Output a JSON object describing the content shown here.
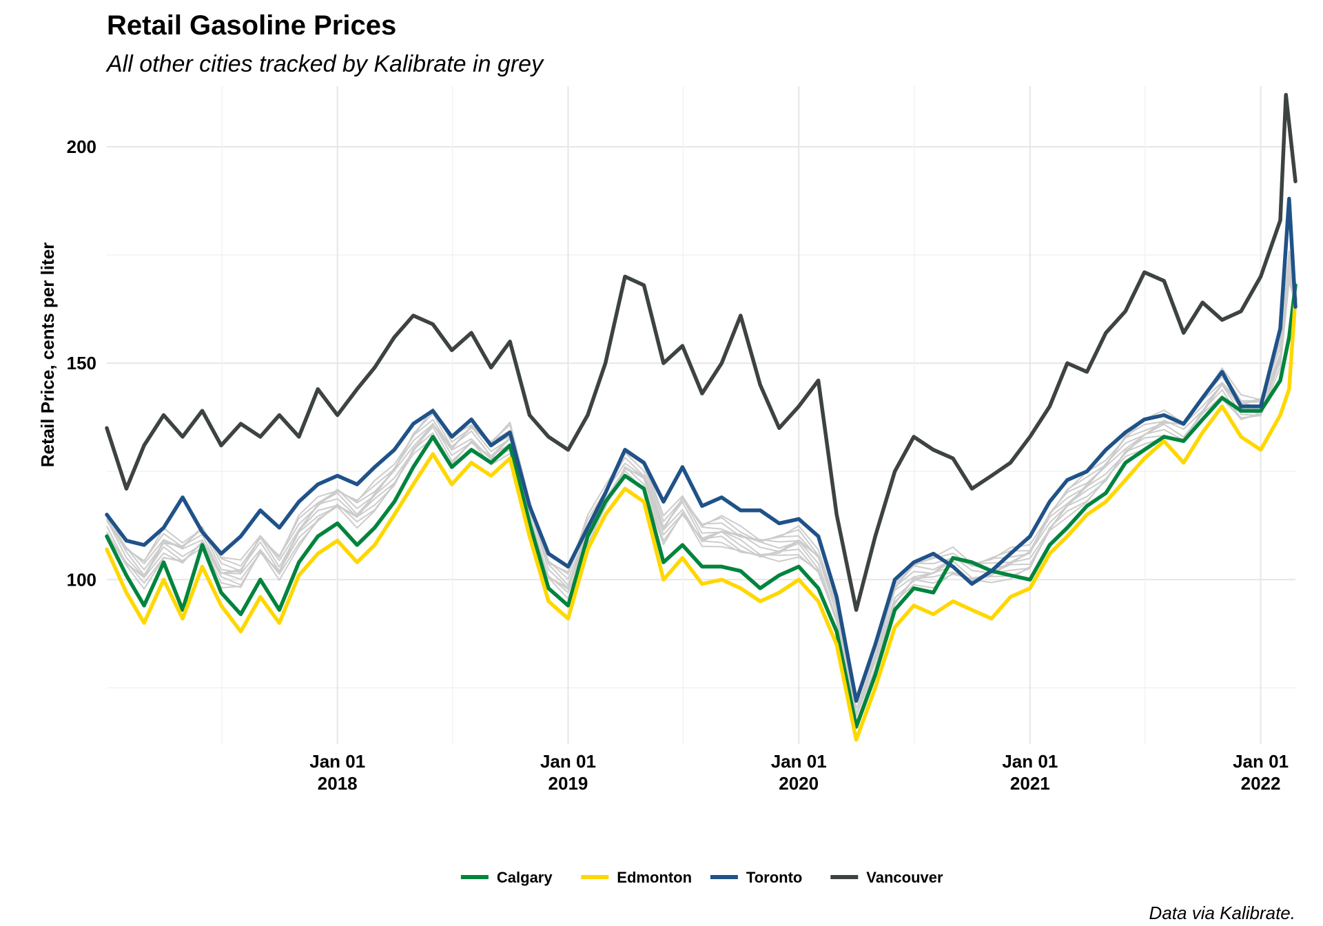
{
  "chart_data": {
    "type": "line",
    "title": "Retail Gasoline Prices",
    "subtitle": "All other cities tracked by Kalibrate in grey",
    "xlabel": "",
    "ylabel": "Retail Price, cents per liter",
    "caption": "Data via Kalibrate.",
    "x_range": [
      "2017-01-01",
      "2022-02-25"
    ],
    "ylim": [
      62,
      214
    ],
    "y_ticks": [
      100,
      150,
      200
    ],
    "x_ticks": [
      {
        "date": "2018-01-01",
        "line1": "Jan 01",
        "line2": "2018"
      },
      {
        "date": "2019-01-01",
        "line1": "Jan 01",
        "line2": "2019"
      },
      {
        "date": "2020-01-01",
        "line1": "Jan 01",
        "line2": "2020"
      },
      {
        "date": "2021-01-01",
        "line1": "Jan 01",
        "line2": "2021"
      },
      {
        "date": "2022-01-01",
        "line1": "Jan 01",
        "line2": "2022"
      }
    ],
    "grid": true,
    "legend_position": "bottom",
    "background_series_color": "#cccccc",
    "series": [
      {
        "name": "Calgary",
        "color": "#00843d",
        "points": [
          [
            "2017-01-01",
            110
          ],
          [
            "2017-02-01",
            101
          ],
          [
            "2017-03-01",
            94
          ],
          [
            "2017-04-01",
            104
          ],
          [
            "2017-05-01",
            93
          ],
          [
            "2017-06-01",
            108
          ],
          [
            "2017-07-01",
            97
          ],
          [
            "2017-08-01",
            92
          ],
          [
            "2017-09-01",
            100
          ],
          [
            "2017-10-01",
            93
          ],
          [
            "2017-11-01",
            104
          ],
          [
            "2017-12-01",
            110
          ],
          [
            "2018-01-01",
            113
          ],
          [
            "2018-02-01",
            108
          ],
          [
            "2018-03-01",
            112
          ],
          [
            "2018-04-01",
            118
          ],
          [
            "2018-05-01",
            126
          ],
          [
            "2018-06-01",
            133
          ],
          [
            "2018-07-01",
            126
          ],
          [
            "2018-08-01",
            130
          ],
          [
            "2018-09-01",
            127
          ],
          [
            "2018-10-01",
            131
          ],
          [
            "2018-11-01",
            113
          ],
          [
            "2018-12-01",
            98
          ],
          [
            "2019-01-01",
            94
          ],
          [
            "2019-02-01",
            110
          ],
          [
            "2019-03-01",
            118
          ],
          [
            "2019-04-01",
            124
          ],
          [
            "2019-05-01",
            121
          ],
          [
            "2019-06-01",
            104
          ],
          [
            "2019-07-01",
            108
          ],
          [
            "2019-08-01",
            103
          ],
          [
            "2019-09-01",
            103
          ],
          [
            "2019-10-01",
            102
          ],
          [
            "2019-11-01",
            98
          ],
          [
            "2019-12-01",
            101
          ],
          [
            "2020-01-01",
            103
          ],
          [
            "2020-02-01",
            98
          ],
          [
            "2020-03-01",
            88
          ],
          [
            "2020-04-01",
            66
          ],
          [
            "2020-05-01",
            78
          ],
          [
            "2020-06-01",
            93
          ],
          [
            "2020-07-01",
            98
          ],
          [
            "2020-08-01",
            97
          ],
          [
            "2020-09-01",
            105
          ],
          [
            "2020-10-01",
            104
          ],
          [
            "2020-11-01",
            102
          ],
          [
            "2020-12-01",
            101
          ],
          [
            "2021-01-01",
            100
          ],
          [
            "2021-02-01",
            108
          ],
          [
            "2021-03-01",
            112
          ],
          [
            "2021-04-01",
            117
          ],
          [
            "2021-05-01",
            120
          ],
          [
            "2021-06-01",
            127
          ],
          [
            "2021-07-01",
            130
          ],
          [
            "2021-08-01",
            133
          ],
          [
            "2021-09-01",
            132
          ],
          [
            "2021-10-01",
            137
          ],
          [
            "2021-11-01",
            142
          ],
          [
            "2021-12-01",
            139
          ],
          [
            "2022-01-01",
            139
          ],
          [
            "2022-02-01",
            146
          ],
          [
            "2022-02-15",
            156
          ],
          [
            "2022-02-25",
            168
          ]
        ]
      },
      {
        "name": "Edmonton",
        "color": "#ffd700",
        "points": [
          [
            "2017-01-01",
            107
          ],
          [
            "2017-02-01",
            97
          ],
          [
            "2017-03-01",
            90
          ],
          [
            "2017-04-01",
            100
          ],
          [
            "2017-05-01",
            91
          ],
          [
            "2017-06-01",
            103
          ],
          [
            "2017-07-01",
            94
          ],
          [
            "2017-08-01",
            88
          ],
          [
            "2017-09-01",
            96
          ],
          [
            "2017-10-01",
            90
          ],
          [
            "2017-11-01",
            101
          ],
          [
            "2017-12-01",
            106
          ],
          [
            "2018-01-01",
            109
          ],
          [
            "2018-02-01",
            104
          ],
          [
            "2018-03-01",
            108
          ],
          [
            "2018-04-01",
            115
          ],
          [
            "2018-05-01",
            122
          ],
          [
            "2018-06-01",
            129
          ],
          [
            "2018-07-01",
            122
          ],
          [
            "2018-08-01",
            127
          ],
          [
            "2018-09-01",
            124
          ],
          [
            "2018-10-01",
            128
          ],
          [
            "2018-11-01",
            110
          ],
          [
            "2018-12-01",
            95
          ],
          [
            "2019-01-01",
            91
          ],
          [
            "2019-02-01",
            107
          ],
          [
            "2019-03-01",
            115
          ],
          [
            "2019-04-01",
            121
          ],
          [
            "2019-05-01",
            118
          ],
          [
            "2019-06-01",
            100
          ],
          [
            "2019-07-01",
            105
          ],
          [
            "2019-08-01",
            99
          ],
          [
            "2019-09-01",
            100
          ],
          [
            "2019-10-01",
            98
          ],
          [
            "2019-11-01",
            95
          ],
          [
            "2019-12-01",
            97
          ],
          [
            "2020-01-01",
            100
          ],
          [
            "2020-02-01",
            95
          ],
          [
            "2020-03-01",
            85
          ],
          [
            "2020-04-01",
            63
          ],
          [
            "2020-05-01",
            75
          ],
          [
            "2020-06-01",
            89
          ],
          [
            "2020-07-01",
            94
          ],
          [
            "2020-08-01",
            92
          ],
          [
            "2020-09-01",
            95
          ],
          [
            "2020-10-01",
            93
          ],
          [
            "2020-11-01",
            91
          ],
          [
            "2020-12-01",
            96
          ],
          [
            "2021-01-01",
            98
          ],
          [
            "2021-02-01",
            106
          ],
          [
            "2021-03-01",
            110
          ],
          [
            "2021-04-01",
            115
          ],
          [
            "2021-05-01",
            118
          ],
          [
            "2021-06-01",
            123
          ],
          [
            "2021-07-01",
            128
          ],
          [
            "2021-08-01",
            132
          ],
          [
            "2021-09-01",
            127
          ],
          [
            "2021-10-01",
            134
          ],
          [
            "2021-11-01",
            140
          ],
          [
            "2021-12-01",
            133
          ],
          [
            "2022-01-01",
            130
          ],
          [
            "2022-02-01",
            138
          ],
          [
            "2022-02-15",
            144
          ],
          [
            "2022-02-25",
            165
          ]
        ]
      },
      {
        "name": "Toronto",
        "color": "#1f5288",
        "points": [
          [
            "2017-01-01",
            115
          ],
          [
            "2017-02-01",
            109
          ],
          [
            "2017-03-01",
            108
          ],
          [
            "2017-04-01",
            112
          ],
          [
            "2017-05-01",
            119
          ],
          [
            "2017-06-01",
            111
          ],
          [
            "2017-07-01",
            106
          ],
          [
            "2017-08-01",
            110
          ],
          [
            "2017-09-01",
            116
          ],
          [
            "2017-10-01",
            112
          ],
          [
            "2017-11-01",
            118
          ],
          [
            "2017-12-01",
            122
          ],
          [
            "2018-01-01",
            124
          ],
          [
            "2018-02-01",
            122
          ],
          [
            "2018-03-01",
            126
          ],
          [
            "2018-04-01",
            130
          ],
          [
            "2018-05-01",
            136
          ],
          [
            "2018-06-01",
            139
          ],
          [
            "2018-07-01",
            133
          ],
          [
            "2018-08-01",
            137
          ],
          [
            "2018-09-01",
            131
          ],
          [
            "2018-10-01",
            134
          ],
          [
            "2018-11-01",
            117
          ],
          [
            "2018-12-01",
            106
          ],
          [
            "2019-01-01",
            103
          ],
          [
            "2019-02-01",
            112
          ],
          [
            "2019-03-01",
            120
          ],
          [
            "2019-04-01",
            130
          ],
          [
            "2019-05-01",
            127
          ],
          [
            "2019-06-01",
            118
          ],
          [
            "2019-07-01",
            126
          ],
          [
            "2019-08-01",
            117
          ],
          [
            "2019-09-01",
            119
          ],
          [
            "2019-10-01",
            116
          ],
          [
            "2019-11-01",
            116
          ],
          [
            "2019-12-01",
            113
          ],
          [
            "2020-01-01",
            114
          ],
          [
            "2020-02-01",
            110
          ],
          [
            "2020-03-01",
            96
          ],
          [
            "2020-04-01",
            72
          ],
          [
            "2020-05-01",
            85
          ],
          [
            "2020-06-01",
            100
          ],
          [
            "2020-07-01",
            104
          ],
          [
            "2020-08-01",
            106
          ],
          [
            "2020-09-01",
            103
          ],
          [
            "2020-10-01",
            99
          ],
          [
            "2020-11-01",
            102
          ],
          [
            "2020-12-01",
            106
          ],
          [
            "2021-01-01",
            110
          ],
          [
            "2021-02-01",
            118
          ],
          [
            "2021-03-01",
            123
          ],
          [
            "2021-04-01",
            125
          ],
          [
            "2021-05-01",
            130
          ],
          [
            "2021-06-01",
            134
          ],
          [
            "2021-07-01",
            137
          ],
          [
            "2021-08-01",
            138
          ],
          [
            "2021-09-01",
            136
          ],
          [
            "2021-10-01",
            142
          ],
          [
            "2021-11-01",
            148
          ],
          [
            "2021-12-01",
            140
          ],
          [
            "2022-01-01",
            140
          ],
          [
            "2022-02-01",
            158
          ],
          [
            "2022-02-15",
            188
          ],
          [
            "2022-02-25",
            163
          ]
        ]
      },
      {
        "name": "Vancouver",
        "color": "#3d4242",
        "points": [
          [
            "2017-01-01",
            135
          ],
          [
            "2017-02-01",
            121
          ],
          [
            "2017-03-01",
            131
          ],
          [
            "2017-04-01",
            138
          ],
          [
            "2017-05-01",
            133
          ],
          [
            "2017-06-01",
            139
          ],
          [
            "2017-07-01",
            131
          ],
          [
            "2017-08-01",
            136
          ],
          [
            "2017-09-01",
            133
          ],
          [
            "2017-10-01",
            138
          ],
          [
            "2017-11-01",
            133
          ],
          [
            "2017-12-01",
            144
          ],
          [
            "2018-01-01",
            138
          ],
          [
            "2018-02-01",
            144
          ],
          [
            "2018-03-01",
            149
          ],
          [
            "2018-04-01",
            156
          ],
          [
            "2018-05-01",
            161
          ],
          [
            "2018-06-01",
            159
          ],
          [
            "2018-07-01",
            153
          ],
          [
            "2018-08-01",
            157
          ],
          [
            "2018-09-01",
            149
          ],
          [
            "2018-10-01",
            155
          ],
          [
            "2018-11-01",
            138
          ],
          [
            "2018-12-01",
            133
          ],
          [
            "2019-01-01",
            130
          ],
          [
            "2019-02-01",
            138
          ],
          [
            "2019-03-01",
            150
          ],
          [
            "2019-04-01",
            170
          ],
          [
            "2019-05-01",
            168
          ],
          [
            "2019-06-01",
            150
          ],
          [
            "2019-07-01",
            154
          ],
          [
            "2019-08-01",
            143
          ],
          [
            "2019-09-01",
            150
          ],
          [
            "2019-10-01",
            161
          ],
          [
            "2019-11-01",
            145
          ],
          [
            "2019-12-01",
            135
          ],
          [
            "2020-01-01",
            140
          ],
          [
            "2020-02-01",
            146
          ],
          [
            "2020-03-01",
            115
          ],
          [
            "2020-04-01",
            93
          ],
          [
            "2020-05-01",
            110
          ],
          [
            "2020-06-01",
            125
          ],
          [
            "2020-07-01",
            133
          ],
          [
            "2020-08-01",
            130
          ],
          [
            "2020-09-01",
            128
          ],
          [
            "2020-10-01",
            121
          ],
          [
            "2020-11-01",
            124
          ],
          [
            "2020-12-01",
            127
          ],
          [
            "2021-01-01",
            133
          ],
          [
            "2021-02-01",
            140
          ],
          [
            "2021-03-01",
            150
          ],
          [
            "2021-04-01",
            148
          ],
          [
            "2021-05-01",
            157
          ],
          [
            "2021-06-01",
            162
          ],
          [
            "2021-07-01",
            171
          ],
          [
            "2021-08-01",
            169
          ],
          [
            "2021-09-01",
            157
          ],
          [
            "2021-10-01",
            164
          ],
          [
            "2021-11-01",
            160
          ],
          [
            "2021-12-01",
            162
          ],
          [
            "2022-01-01",
            170
          ],
          [
            "2022-02-01",
            183
          ],
          [
            "2022-02-10",
            212
          ],
          [
            "2022-02-25",
            192
          ]
        ]
      }
    ]
  }
}
